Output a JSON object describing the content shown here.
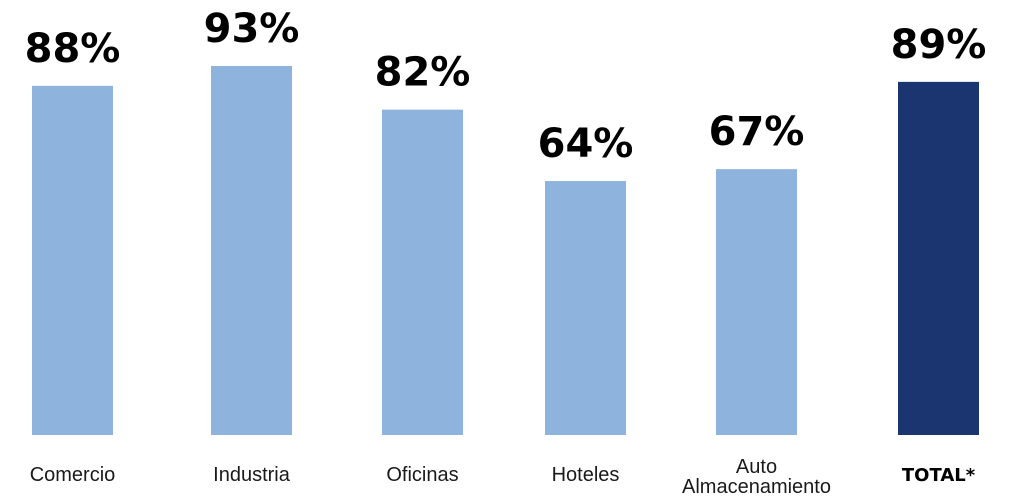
{
  "chart_data": {
    "type": "bar",
    "categories": [
      [
        "Comercio"
      ],
      [
        "Industria"
      ],
      [
        "Oficinas"
      ],
      [
        "Hoteles"
      ],
      [
        "Auto",
        "Almacenamiento"
      ],
      [
        "TOTAL*"
      ]
    ],
    "values": [
      88,
      93,
      82,
      64,
      67,
      89
    ],
    "value_labels": [
      "88%",
      "93%",
      "82%",
      "64%",
      "67%",
      "89%"
    ],
    "highlight_index": 5,
    "colors": {
      "bar": "#8EB4DE",
      "highlight": "#1B3570"
    },
    "title": "",
    "xlabel": "",
    "ylabel": "",
    "grid": false
  }
}
